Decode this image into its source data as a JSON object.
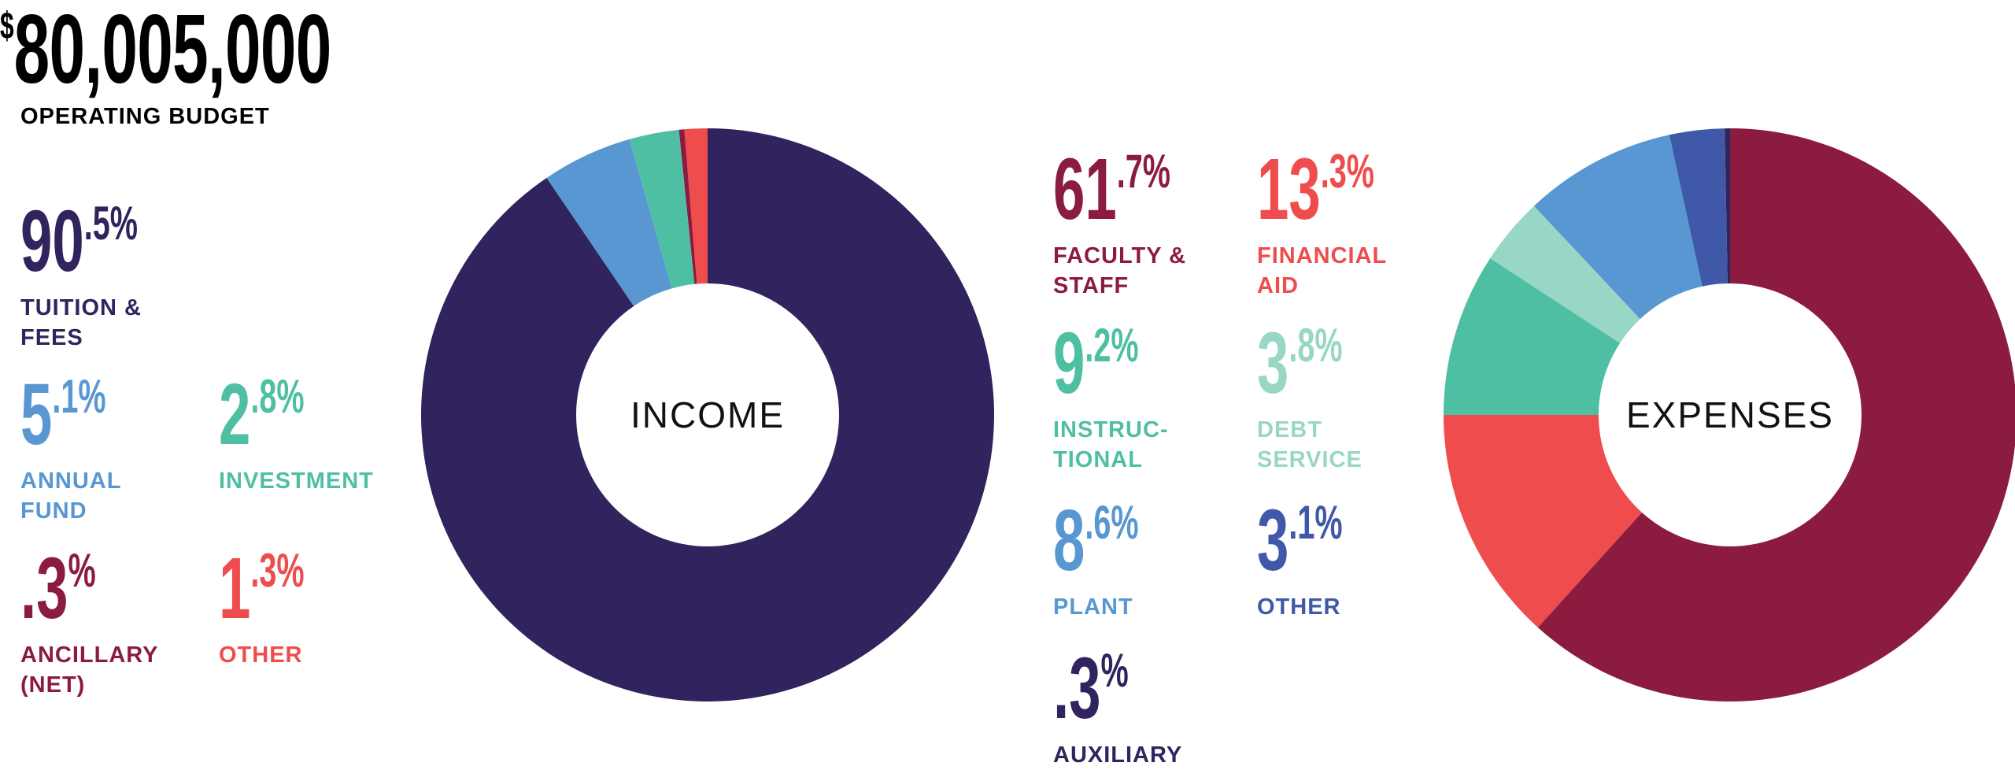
{
  "header": {
    "currency": "$",
    "total": "80,005,000",
    "label": "OPERATING BUDGET"
  },
  "chart_data": [
    {
      "type": "pie",
      "title": "INCOME",
      "series": [
        {
          "label_big": "90",
          "label_small": ".5%",
          "label_lines": [
            "TUITION &",
            "FEES"
          ],
          "value": 90.5,
          "color": "#31235d"
        },
        {
          "label_big": "5",
          "label_small": ".1%",
          "label_lines": [
            "ANNUAL",
            "FUND"
          ],
          "value": 5.1,
          "color": "#5897d2"
        },
        {
          "label_big": "2",
          "label_small": ".8%",
          "label_lines": [
            "INVESTMENT"
          ],
          "value": 2.8,
          "color": "#4fbfa4"
        },
        {
          "label_big": ".3",
          "label_small": "%",
          "label_lines": [
            "ANCILLARY",
            "(NET)"
          ],
          "value": 0.3,
          "color": "#8b1c3f"
        },
        {
          "label_big": "1",
          "label_small": ".3%",
          "label_lines": [
            "OTHER"
          ],
          "value": 1.3,
          "color": "#ef4c4d"
        }
      ]
    },
    {
      "type": "pie",
      "title": "EXPENSES",
      "series": [
        {
          "label_big": "61",
          "label_small": ".7%",
          "label_lines": [
            "FACULTY &",
            "STAFF"
          ],
          "value": 61.7,
          "color": "#8b1c3f"
        },
        {
          "label_big": "13",
          "label_small": ".3%",
          "label_lines": [
            "FINANCIAL",
            "AID"
          ],
          "value": 13.3,
          "color": "#ef4c4d"
        },
        {
          "label_big": "9",
          "label_small": ".2%",
          "label_lines": [
            "INSTRUC-",
            "TIONAL"
          ],
          "value": 9.2,
          "color": "#4fbfa4"
        },
        {
          "label_big": "3",
          "label_small": ".8%",
          "label_lines": [
            "DEBT",
            "SERVICE"
          ],
          "value": 3.8,
          "color": "#98d6c5"
        },
        {
          "label_big": "8",
          "label_small": ".6%",
          "label_lines": [
            "PLANT"
          ],
          "value": 8.6,
          "color": "#5897d2"
        },
        {
          "label_big": "3",
          "label_small": ".1%",
          "label_lines": [
            "OTHER"
          ],
          "value": 3.1,
          "color": "#3f58a8"
        },
        {
          "label_big": ".3",
          "label_small": "%",
          "label_lines": [
            "AUXILIARY"
          ],
          "value": 0.3,
          "color": "#31235d"
        }
      ]
    }
  ]
}
